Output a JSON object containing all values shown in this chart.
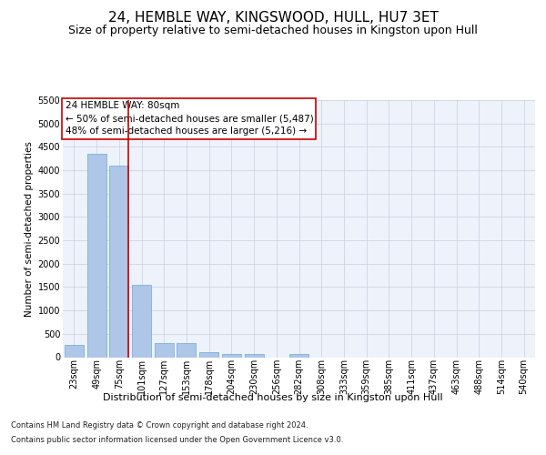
{
  "title": "24, HEMBLE WAY, KINGSWOOD, HULL, HU7 3ET",
  "subtitle": "Size of property relative to semi-detached houses in Kingston upon Hull",
  "xlabel": "Distribution of semi-detached houses by size in Kingston upon Hull",
  "ylabel": "Number of semi-detached properties",
  "footer1": "Contains HM Land Registry data © Crown copyright and database right 2024.",
  "footer2": "Contains public sector information licensed under the Open Government Licence v3.0.",
  "categories": [
    "23sqm",
    "49sqm",
    "75sqm",
    "101sqm",
    "127sqm",
    "153sqm",
    "178sqm",
    "204sqm",
    "230sqm",
    "256sqm",
    "282sqm",
    "308sqm",
    "333sqm",
    "359sqm",
    "385sqm",
    "411sqm",
    "437sqm",
    "463sqm",
    "488sqm",
    "514sqm",
    "540sqm"
  ],
  "values": [
    270,
    4350,
    4100,
    1540,
    310,
    310,
    110,
    75,
    60,
    0,
    60,
    0,
    0,
    0,
    0,
    0,
    0,
    0,
    0,
    0,
    0
  ],
  "bar_color": "#aec6e8",
  "bar_edge_color": "#6aaad4",
  "vline_x": 2,
  "vline_color": "#cc0000",
  "annotation_title": "24 HEMBLE WAY: 80sqm",
  "annotation_line1": "← 50% of semi-detached houses are smaller (5,487)",
  "annotation_line2": "48% of semi-detached houses are larger (5,216) →",
  "annotation_box_color": "#ffffff",
  "annotation_box_edge": "#cc0000",
  "ylim": [
    0,
    5500
  ],
  "yticks": [
    0,
    500,
    1000,
    1500,
    2000,
    2500,
    3000,
    3500,
    4000,
    4500,
    5000,
    5500
  ],
  "bg_color": "#eef2fa",
  "fig_bg_color": "#ffffff",
  "title_fontsize": 11,
  "subtitle_fontsize": 9,
  "tick_fontsize": 7,
  "ylabel_fontsize": 7.5,
  "xlabel_fontsize": 8,
  "footer_fontsize": 6,
  "annotation_fontsize": 7.5
}
